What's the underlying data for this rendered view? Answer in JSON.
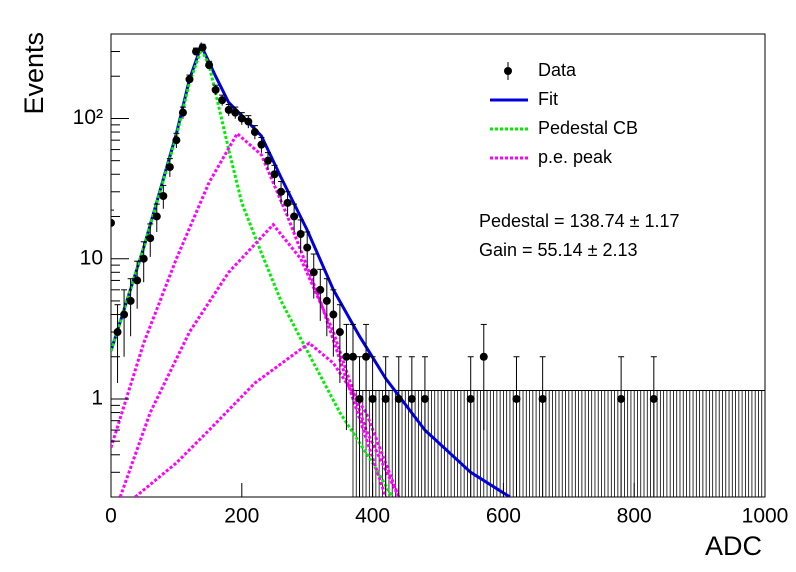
{
  "chart_data": {
    "type": "histogram-fit",
    "xlabel": "ADC",
    "ylabel": "Events",
    "xlim": [
      0,
      1000
    ],
    "ylim": [
      0.2,
      400
    ],
    "log_y": true,
    "xticks": [
      0,
      200,
      400,
      600,
      800,
      1000
    ],
    "yticks": [
      1,
      10,
      {
        "value": 100,
        "label": "10²"
      }
    ],
    "legend": "top-right",
    "annotations": [
      "Pedestal = 138.74 ± 1.17",
      "Gain = 55.14 ± 2.13"
    ],
    "data": {
      "name": "Data",
      "color": "#000000",
      "x": [
        0,
        10,
        20,
        30,
        40,
        50,
        60,
        70,
        80,
        90,
        100,
        110,
        120,
        130,
        140,
        150,
        160,
        170,
        180,
        190,
        200,
        210,
        220,
        230,
        240,
        250,
        260,
        270,
        280,
        290,
        300,
        310,
        320,
        330,
        340,
        350,
        360,
        370,
        380,
        390,
        400,
        420,
        440,
        460,
        480,
        550,
        570,
        620,
        660,
        780,
        830
      ],
      "values": [
        18,
        3,
        4,
        5,
        7,
        10,
        14,
        20,
        28,
        45,
        70,
        110,
        190,
        300,
        320,
        240,
        160,
        135,
        115,
        110,
        100,
        95,
        80,
        65,
        50,
        40,
        30,
        25,
        20,
        15,
        12,
        8,
        6,
        5,
        4,
        3,
        2,
        2,
        1,
        2,
        1,
        1,
        1,
        1,
        1,
        1,
        2,
        1,
        1,
        1,
        1
      ],
      "errors": [
        4.2,
        1.7,
        2,
        2.2,
        2.6,
        3.2,
        3.7,
        4.5,
        5.3,
        6.7,
        8.4,
        10.5,
        13.8,
        17.3,
        17.9,
        15.5,
        12.6,
        11.6,
        10.7,
        10.5,
        10,
        9.7,
        8.9,
        8.1,
        7.1,
        6.3,
        5.5,
        5,
        4.5,
        3.9,
        3.5,
        2.8,
        2.4,
        2.2,
        2,
        1.7,
        1.4,
        1.4,
        1,
        1.4,
        1,
        1,
        1,
        1,
        1,
        1,
        1.4,
        1,
        1,
        1,
        1
      ]
    },
    "empty_bins": {
      "range": [
        370,
        1000
      ],
      "width": 5,
      "upper_error": 1.15
    },
    "curves": [
      {
        "name": "Fit",
        "color": "#0000dd",
        "style": "solid",
        "x": [
          0,
          50,
          100,
          120,
          138,
          160,
          180,
          200,
          230,
          260,
          300,
          340,
          380,
          420,
          480,
          550,
          610
        ],
        "values": [
          2.2,
          12,
          78,
          190,
          330,
          200,
          130,
          105,
          75,
          38,
          16,
          6,
          2.8,
          1.4,
          0.6,
          0.3,
          0.2
        ]
      },
      {
        "name": "Pedestal CB",
        "color": "#00ee00",
        "style": "dotted",
        "x": [
          0,
          50,
          100,
          120,
          138,
          150,
          165,
          180,
          200,
          230,
          260,
          300,
          350,
          400,
          430
        ],
        "values": [
          2.2,
          12,
          75,
          180,
          310,
          240,
          120,
          60,
          25,
          11,
          5,
          2.2,
          0.8,
          0.35,
          0.2
        ]
      },
      {
        "name": "p.e. peak",
        "color": "#ff00ff",
        "style": "dotted",
        "x": [
          0,
          50,
          100,
          150,
          193,
          230,
          270,
          320,
          370,
          420
        ],
        "values": [
          0.45,
          2.5,
          10,
          35,
          78,
          55,
          20,
          5,
          1,
          0.2
        ]
      },
      {
        "color": "#ff00ff",
        "style": "dotted",
        "x": [
          14,
          60,
          120,
          180,
          248,
          290,
          340,
          390,
          440
        ],
        "values": [
          0.2,
          0.8,
          3,
          8,
          17.5,
          10,
          3,
          0.6,
          0.2
        ]
      },
      {
        "color": "#ff00ff",
        "style": "dotted",
        "x": [
          37,
          100,
          150,
          220,
          303,
          340,
          390,
          440
        ],
        "values": [
          0.2,
          0.35,
          0.6,
          1.3,
          2.5,
          1.8,
          0.8,
          0.2
        ]
      }
    ]
  }
}
